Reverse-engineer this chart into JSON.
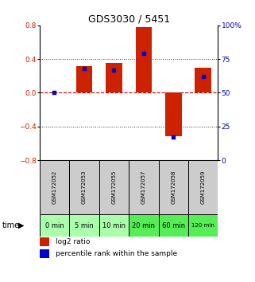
{
  "title": "GDS3030 / 5451",
  "samples": [
    "GSM172052",
    "GSM172053",
    "GSM172055",
    "GSM172057",
    "GSM172058",
    "GSM172059"
  ],
  "time_labels": [
    "0 min",
    "5 min",
    "10 min",
    "20 min",
    "60 min",
    "120 min"
  ],
  "log2_ratio": [
    0.0,
    0.32,
    0.35,
    0.78,
    -0.52,
    0.3
  ],
  "percentile_rank": [
    50,
    68,
    67,
    79,
    17,
    62
  ],
  "ylim_left": [
    -0.8,
    0.8
  ],
  "ylim_right": [
    0,
    100
  ],
  "yticks_left": [
    -0.8,
    -0.4,
    0,
    0.4,
    0.8
  ],
  "yticks_right": [
    0,
    25,
    50,
    75,
    100
  ],
  "bar_color": "#cc2200",
  "dot_color": "#0000cc",
  "zero_line_color": "#cc0000",
  "grid_color": "#333333",
  "sample_bg": "#cccccc",
  "time_bg_light": "#aaffaa",
  "time_bg_dark": "#55ee55",
  "legend_red": "#cc2200",
  "legend_blue": "#0000cc",
  "bar_width": 0.55,
  "time_colors": [
    "#aaffaa",
    "#aaffaa",
    "#aaffaa",
    "#55ee55",
    "#55ee55",
    "#55ee55"
  ]
}
